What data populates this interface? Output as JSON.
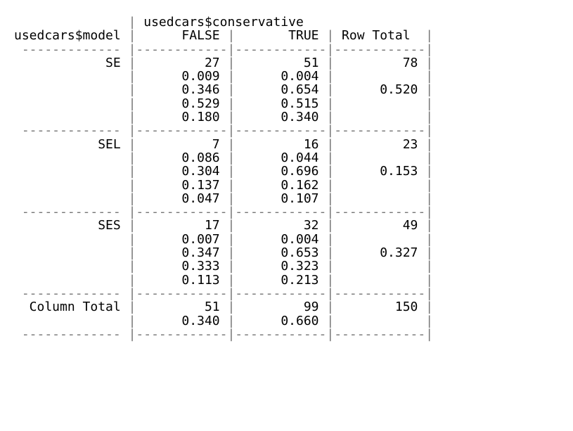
{
  "table": {
    "header_var": "usedcars$conservative",
    "row_var": "usedcars$model",
    "columns": [
      "FALSE",
      "TRUE",
      "Row Total"
    ],
    "rows": [
      {
        "label": "SE",
        "false": [
          "27",
          "0.009",
          "0.346",
          "0.529",
          "0.180"
        ],
        "true": [
          "51",
          "0.004",
          "0.654",
          "0.515",
          "0.340"
        ],
        "total": [
          "78",
          "",
          "0.520",
          "",
          ""
        ]
      },
      {
        "label": "SEL",
        "false": [
          "7",
          "0.086",
          "0.304",
          "0.137",
          "0.047"
        ],
        "true": [
          "16",
          "0.044",
          "0.696",
          "0.162",
          "0.107"
        ],
        "total": [
          "23",
          "",
          "0.153",
          "",
          ""
        ]
      },
      {
        "label": "SES",
        "false": [
          "17",
          "0.007",
          "0.347",
          "0.333",
          "0.113"
        ],
        "true": [
          "32",
          "0.004",
          "0.653",
          "0.323",
          "0.213"
        ],
        "total": [
          "49",
          "",
          "0.327",
          "",
          ""
        ]
      }
    ],
    "column_total": {
      "label": "Column Total",
      "false": [
        "51",
        "0.340"
      ],
      "true": [
        "99",
        "0.660"
      ],
      "total": [
        "150",
        ""
      ]
    }
  }
}
